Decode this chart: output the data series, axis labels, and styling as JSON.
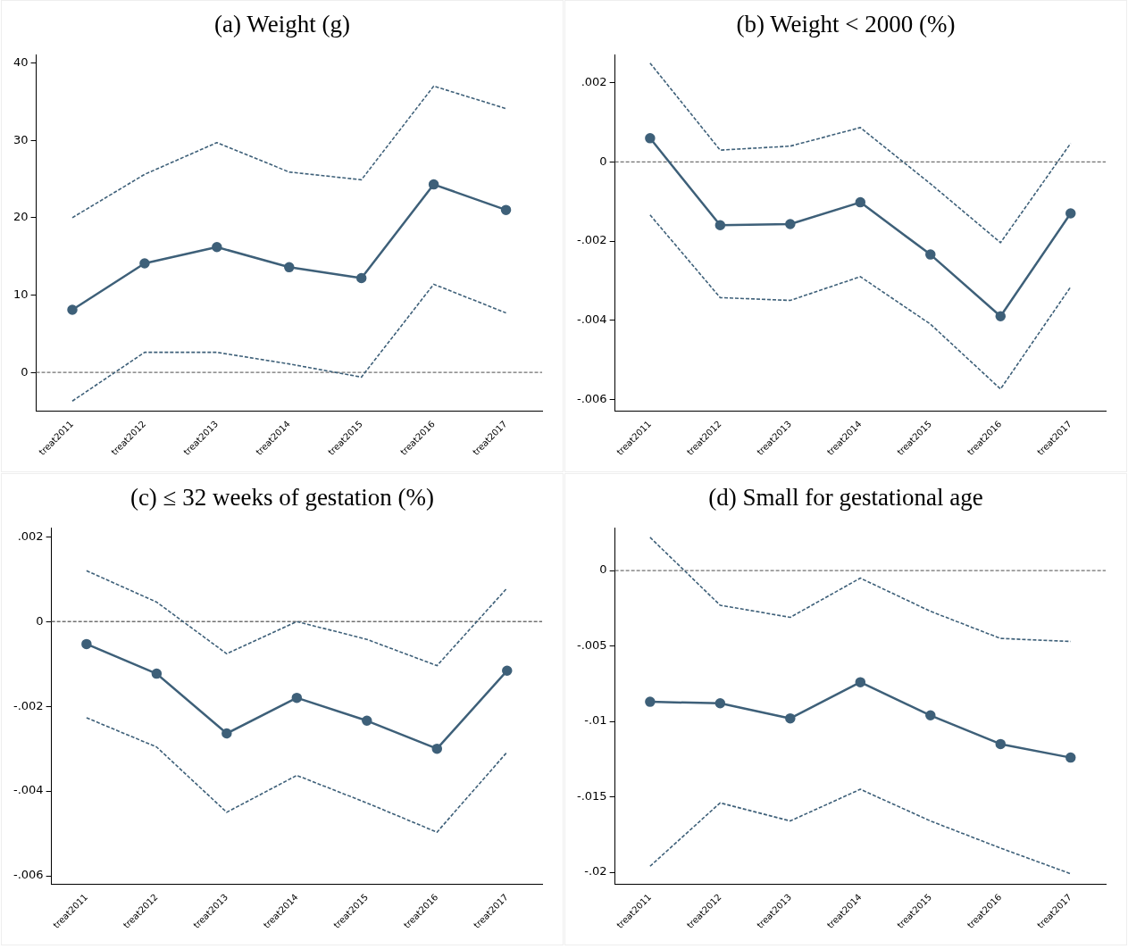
{
  "chart_data": [
    {
      "type": "line",
      "title": "(a) Weight (g)",
      "categories": [
        "treat2011",
        "treat2012",
        "treat2013",
        "treat2014",
        "treat2015",
        "treat2016",
        "treat2017"
      ],
      "series": [
        {
          "color": "#3e6079",
          "marker": "circle",
          "line_style": "solid",
          "values": [
            8.1,
            14.1,
            16.2,
            13.6,
            12.2,
            24.3,
            21.0
          ]
        },
        {
          "color": "#3e6079",
          "marker": "none",
          "line_style": "dashed",
          "values": [
            20.0,
            25.6,
            29.7,
            25.9,
            24.9,
            37.0,
            34.1
          ]
        },
        {
          "color": "#3e6079",
          "marker": "none",
          "line_style": "dashed",
          "values": [
            -3.7,
            2.6,
            2.6,
            1.1,
            -0.6,
            11.4,
            7.7
          ]
        }
      ],
      "ylim": [
        -5,
        41
      ],
      "yticks": [
        0,
        10,
        20,
        30,
        40
      ],
      "grid": false,
      "legend": false,
      "ref_lines": [
        {
          "axis": "y",
          "value": 0,
          "color": "#707070",
          "line_style": "dashed"
        }
      ]
    },
    {
      "type": "line",
      "title": "(b) Weight < 2000 (%)",
      "categories": [
        "treat2011",
        "treat2012",
        "treat2013",
        "treat2014",
        "treat2015",
        "treat2016",
        "treat2017"
      ],
      "series": [
        {
          "color": "#3e6079",
          "marker": "circle",
          "line_style": "solid",
          "values": [
            0.0006,
            -0.0016,
            -0.00157,
            -0.00102,
            -0.00234,
            -0.0039,
            -0.0013
          ]
        },
        {
          "color": "#3e6079",
          "marker": "none",
          "line_style": "dashed",
          "values": [
            0.0025,
            0.0003,
            0.0004,
            0.00087,
            -0.00055,
            -0.00204,
            0.00047
          ]
        },
        {
          "color": "#3e6079",
          "marker": "none",
          "line_style": "dashed",
          "values": [
            -0.00134,
            -0.00343,
            -0.0035,
            -0.0029,
            -0.0041,
            -0.00574,
            -0.00316
          ]
        }
      ],
      "ylim": [
        -0.0063,
        0.0027
      ],
      "yticks": [
        {
          "value": -0.006,
          "label": "-.006"
        },
        {
          "value": -0.004,
          "label": "-.004"
        },
        {
          "value": -0.002,
          "label": "-.002"
        },
        0,
        {
          "value": 0.002,
          "label": ".002"
        }
      ],
      "grid": false,
      "legend": false,
      "ref_lines": [
        {
          "axis": "y",
          "value": 0,
          "color": "#707070",
          "line_style": "dashed"
        }
      ]
    },
    {
      "type": "line",
      "title": "(c) ≤ 32 weeks of gestation (%)",
      "categories": [
        "treat2011",
        "treat2012",
        "treat2013",
        "treat2014",
        "treat2015",
        "treat2016",
        "treat2017"
      ],
      "series": [
        {
          "color": "#3e6079",
          "marker": "circle",
          "line_style": "solid",
          "values": [
            -0.00053,
            -0.00123,
            -0.00264,
            -0.0018,
            -0.00234,
            -0.003,
            -0.00116
          ]
        },
        {
          "color": "#3e6079",
          "marker": "none",
          "line_style": "dashed",
          "values": [
            0.0012,
            0.00046,
            -0.00076,
            0,
            -0.00042,
            -0.00104,
            0.00079
          ]
        },
        {
          "color": "#3e6079",
          "marker": "none",
          "line_style": "dashed",
          "values": [
            -0.00227,
            -0.00296,
            -0.0045,
            -0.00363,
            -0.00428,
            -0.00497,
            -0.00308
          ]
        }
      ],
      "ylim": [
        -0.0062,
        0.0022
      ],
      "yticks": [
        {
          "value": -0.006,
          "label": "-.006"
        },
        {
          "value": -0.004,
          "label": "-.004"
        },
        {
          "value": -0.002,
          "label": "-.002"
        },
        0,
        {
          "value": 0.002,
          "label": ".002"
        }
      ],
      "grid": false,
      "legend": false,
      "ref_lines": [
        {
          "axis": "y",
          "value": 0,
          "color": "#707070",
          "line_style": "dashed"
        }
      ]
    },
    {
      "type": "line",
      "title": "(d) Small for gestational age",
      "categories": [
        "treat2011",
        "treat2012",
        "treat2013",
        "treat2014",
        "treat2015",
        "treat2016",
        "treat2017"
      ],
      "series": [
        {
          "color": "#3e6079",
          "marker": "circle",
          "line_style": "solid",
          "values": [
            -0.0087,
            -0.0088,
            -0.0098,
            -0.0074,
            -0.0096,
            -0.0115,
            -0.0124
          ]
        },
        {
          "color": "#3e6079",
          "marker": "none",
          "line_style": "dashed",
          "values": [
            0.0022,
            -0.0023,
            -0.0031,
            -0.0005,
            -0.0027,
            -0.0045,
            -0.0047
          ]
        },
        {
          "color": "#3e6079",
          "marker": "none",
          "line_style": "dashed",
          "values": [
            -0.0196,
            -0.0154,
            -0.0166,
            -0.0145,
            -0.0166,
            -0.0184,
            -0.0201
          ]
        }
      ],
      "ylim": [
        -0.0208,
        0.0028
      ],
      "yticks": [
        {
          "value": -0.02,
          "label": "-.02"
        },
        {
          "value": -0.015,
          "label": "-.015"
        },
        {
          "value": -0.01,
          "label": "-.01"
        },
        {
          "value": -0.005,
          "label": "-.005"
        },
        0
      ],
      "grid": false,
      "legend": false,
      "ref_lines": [
        {
          "axis": "y",
          "value": 0,
          "color": "#707070",
          "line_style": "dashed"
        }
      ]
    }
  ]
}
